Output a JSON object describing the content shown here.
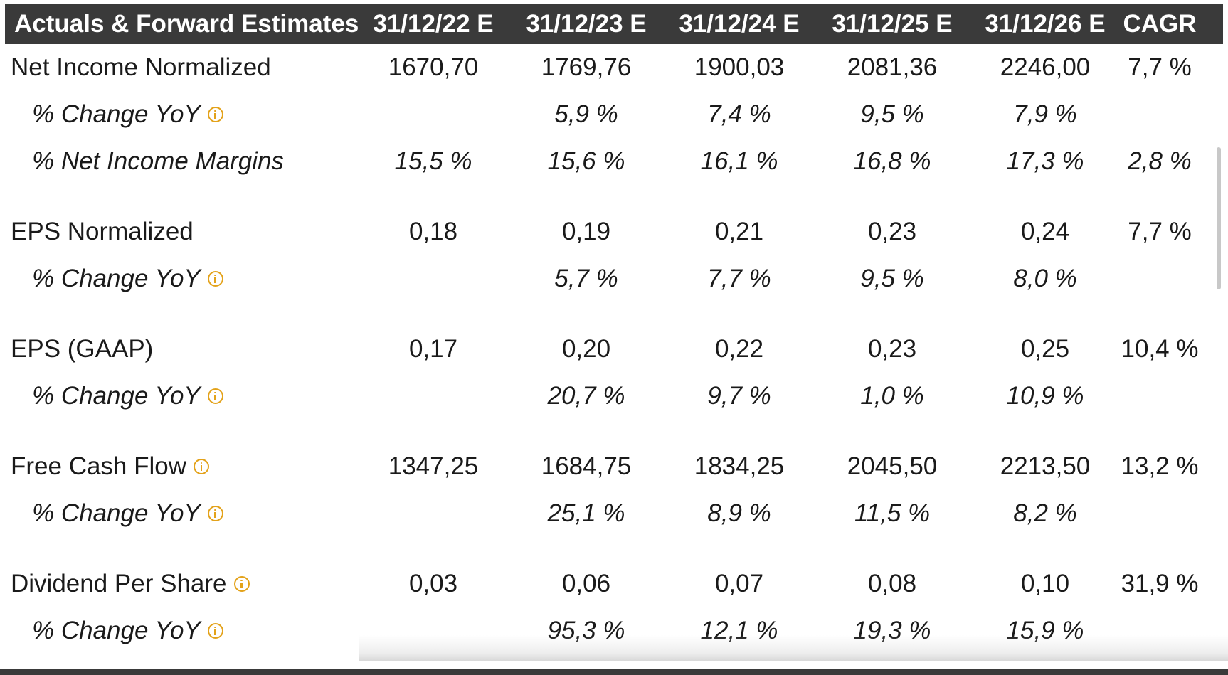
{
  "header": {
    "title": "Actuals & Forward Estimates",
    "col1": "31/12/22 E",
    "col2": "31/12/23 E",
    "col3": "31/12/24 E",
    "col4": "31/12/25 E",
    "col5": "31/12/26 E",
    "col6": "CAGR"
  },
  "rows": [
    {
      "label": "Net Income Normalized",
      "v1": "1670,70",
      "v2": "1769,76",
      "v3": "1900,03",
      "v4": "2081,36",
      "v5": "2246,00",
      "v6": "7,7 %"
    },
    {
      "label": "% Change YoY",
      "v1": "",
      "v2": "5,9 %",
      "v3": "7,4 %",
      "v4": "9,5 %",
      "v5": "7,9 %",
      "v6": ""
    },
    {
      "label": "% Net Income Margins",
      "v1": "15,5 %",
      "v2": "15,6 %",
      "v3": "16,1 %",
      "v4": "16,8 %",
      "v5": "17,3 %",
      "v6": "2,8 %"
    },
    {
      "label": "EPS Normalized",
      "v1": "0,18",
      "v2": "0,19",
      "v3": "0,21",
      "v4": "0,23",
      "v5": "0,24",
      "v6": "7,7 %"
    },
    {
      "label": "% Change YoY",
      "v1": "",
      "v2": "5,7 %",
      "v3": "7,7 %",
      "v4": "9,5 %",
      "v5": "8,0 %",
      "v6": ""
    },
    {
      "label": "EPS (GAAP)",
      "v1": "0,17",
      "v2": "0,20",
      "v3": "0,22",
      "v4": "0,23",
      "v5": "0,25",
      "v6": "10,4 %"
    },
    {
      "label": "% Change YoY",
      "v1": "",
      "v2": "20,7 %",
      "v3": "9,7 %",
      "v4": "1,0 %",
      "v5": "10,9 %",
      "v6": ""
    },
    {
      "label": "Free Cash Flow",
      "v1": "1347,25",
      "v2": "1684,75",
      "v3": "1834,25",
      "v4": "2045,50",
      "v5": "2213,50",
      "v6": "13,2 %"
    },
    {
      "label": "% Change YoY",
      "v1": "",
      "v2": "25,1 %",
      "v3": "8,9 %",
      "v4": "11,5 %",
      "v5": "8,2 %",
      "v6": ""
    },
    {
      "label": "Dividend Per Share",
      "v1": "0,03",
      "v2": "0,06",
      "v3": "0,07",
      "v4": "0,08",
      "v5": "0,10",
      "v6": "31,9 %"
    },
    {
      "label": "% Change YoY",
      "v1": "",
      "v2": "95,3 %",
      "v3": "12,1 %",
      "v4": "19,3 %",
      "v5": "15,9 %",
      "v6": ""
    }
  ],
  "icons": {
    "info": "info-circle-icon",
    "info_color": "#e3a21a"
  },
  "colors": {
    "header_bg": "#3a3a3a",
    "header_text": "#ffffff"
  }
}
